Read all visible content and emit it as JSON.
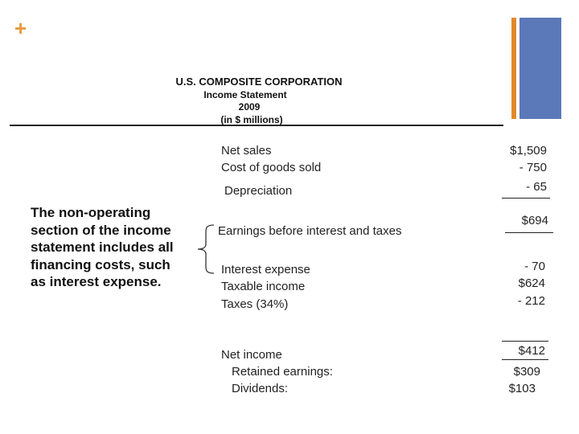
{
  "brand": {
    "plus_symbol": "+",
    "accent_orange": "#e0892b",
    "accent_blue": "#5b78b8"
  },
  "header": {
    "company": "U.S. COMPOSITE CORPORATION",
    "statement": "Income Statement",
    "year": "2009",
    "units": "(in $ millions)"
  },
  "statement": {
    "net_sales": {
      "label": "Net sales",
      "value": "$1,509"
    },
    "cogs": {
      "label": "Cost of goods sold",
      "value": "- 750"
    },
    "depreciation": {
      "label": "Depreciation",
      "value": "- 65"
    },
    "ebit": {
      "label": "Earnings before interest and taxes",
      "value": "$694"
    },
    "interest": {
      "label": "Interest expense",
      "value": "- 70"
    },
    "taxable": {
      "label": "Taxable income",
      "value": "$624"
    },
    "taxes": {
      "label": "Taxes (34%)",
      "value": "- 212"
    },
    "net_income": {
      "label": "Net income",
      "value": "$412"
    },
    "retained": {
      "label": "Retained earnings:",
      "value": "$309"
    },
    "dividends": {
      "label": "Dividends:",
      "value": "$103"
    }
  },
  "note": "The non-operating section of the income statement includes all financing costs, such as interest expense."
}
